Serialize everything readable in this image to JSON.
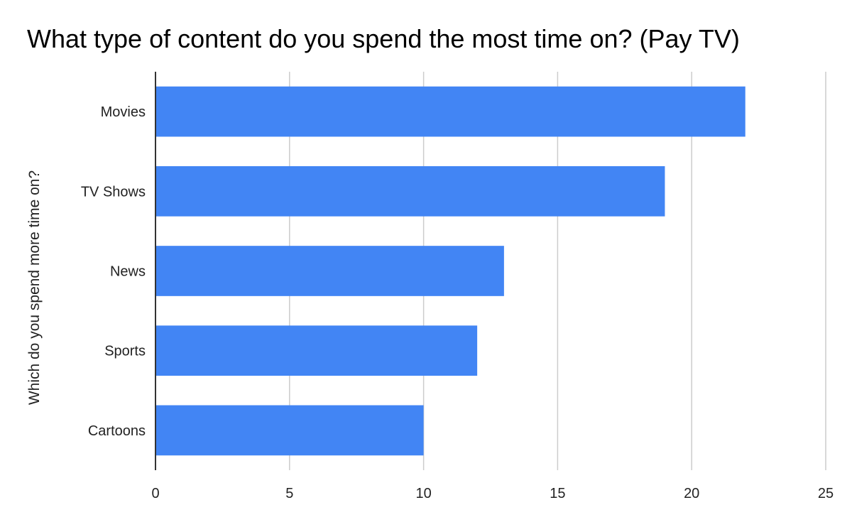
{
  "chart_data": {
    "type": "bar",
    "orientation": "horizontal",
    "title": "What type of content do you spend the most time on? (Pay TV)",
    "xlabel": "",
    "ylabel": "Which do you spend more time on?",
    "categories": [
      "Movies",
      "TV Shows",
      "News",
      "Sports",
      "Cartoons"
    ],
    "values": [
      22,
      19,
      13,
      12,
      10
    ],
    "xlim": [
      0,
      25
    ],
    "xticks": [
      "0",
      "5",
      "10",
      "15",
      "20",
      "25"
    ],
    "grid": true,
    "legend": "none",
    "colors": {
      "bar": "#4285f4",
      "grid": "#cccccc",
      "axis": "#333333",
      "text": "#222222"
    }
  }
}
